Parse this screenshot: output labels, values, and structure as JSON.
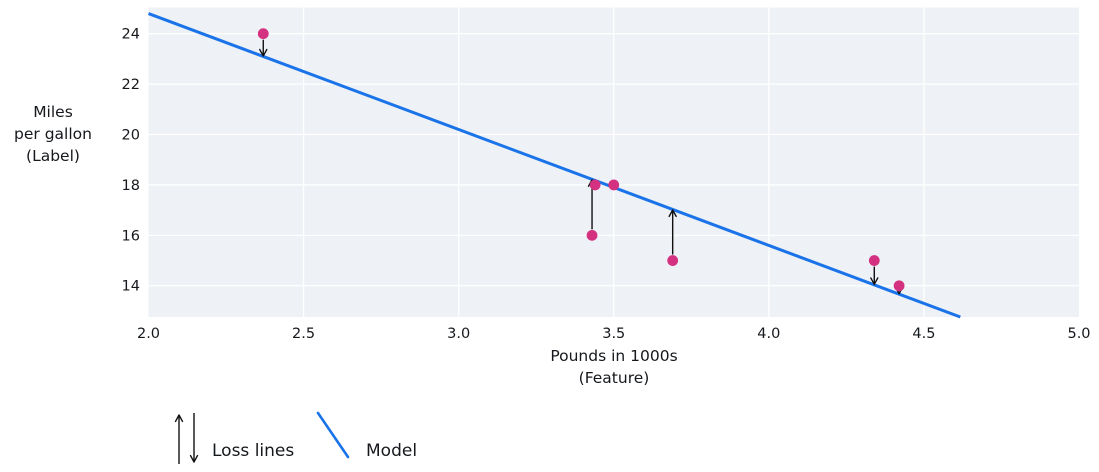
{
  "figure": {
    "background": "#ffffff",
    "plot_background": "#eef1f6",
    "grid_color": "#ffffff",
    "text_color": "#15181c"
  },
  "chart_data": {
    "type": "scatter",
    "title": "",
    "xlabel": "Pounds in 1000s\n(Feature)",
    "ylabel": "Miles\nper gallon\n(Label)",
    "xlim": [
      2.0,
      5.0
    ],
    "ylim": [
      12.76,
      25.04
    ],
    "grid": true,
    "x_ticks": [
      {
        "v": 2.0,
        "label": "2.0"
      },
      {
        "v": 2.5,
        "label": "2.5"
      },
      {
        "v": 3.0,
        "label": "3.0"
      },
      {
        "v": 3.5,
        "label": "3.5"
      },
      {
        "v": 4.0,
        "label": "4.0"
      },
      {
        "v": 4.5,
        "label": "4.5"
      },
      {
        "v": 5.0,
        "label": "5.0"
      }
    ],
    "y_ticks": [
      {
        "v": 14,
        "label": "14"
      },
      {
        "v": 16,
        "label": "16"
      },
      {
        "v": 18,
        "label": "18"
      },
      {
        "v": 20,
        "label": "20"
      },
      {
        "v": 22,
        "label": "22"
      },
      {
        "v": 24,
        "label": "24"
      }
    ],
    "points": [
      {
        "x": 2.37,
        "y": 24
      },
      {
        "x": 3.44,
        "y": 18
      },
      {
        "x": 3.5,
        "y": 18
      },
      {
        "x": 3.43,
        "y": 16
      },
      {
        "x": 3.69,
        "y": 15
      },
      {
        "x": 4.34,
        "y": 15
      },
      {
        "x": 4.42,
        "y": 14
      }
    ],
    "point_color": "#d43181",
    "model_line": {
      "slope": -4.6,
      "intercept": 34,
      "color": "#1a73e8"
    },
    "loss_lines": [
      {
        "x": 2.37,
        "y": 24
      },
      {
        "x": 3.43,
        "y": 16
      },
      {
        "x": 3.69,
        "y": 15
      },
      {
        "x": 4.34,
        "y": 15
      },
      {
        "x": 4.42,
        "y": 14
      }
    ],
    "loss_color": "#111111"
  },
  "legend": {
    "loss_label": "Loss lines",
    "model_label": "Model"
  }
}
